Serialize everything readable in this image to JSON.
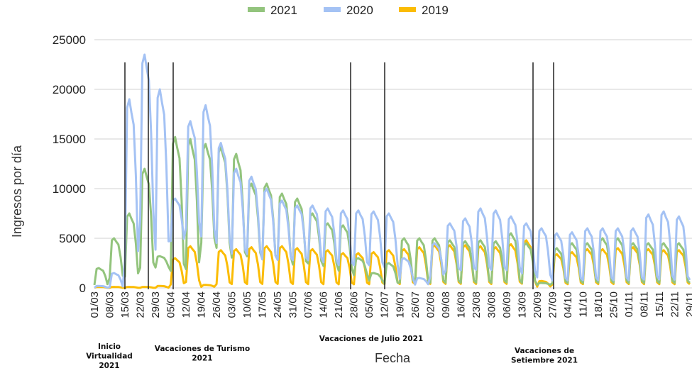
{
  "chart_data": {
    "type": "line",
    "xlabel": "Fecha",
    "ylabel": "Ingresos por día",
    "ylim": [
      0,
      25000
    ],
    "yticks": [
      0,
      5000,
      10000,
      15000,
      20000,
      25000
    ],
    "xticks": [
      "01/03",
      "08/03",
      "15/03",
      "22/03",
      "29/03",
      "05/04",
      "12/04",
      "19/04",
      "26/04",
      "03/05",
      "10/05",
      "17/05",
      "24/05",
      "31/05",
      "07/06",
      "14/06",
      "21/06",
      "28/06",
      "05/07",
      "12/07",
      "19/07",
      "26/07",
      "02/08",
      "09/08",
      "16/08",
      "23/08",
      "30/08",
      "06/09",
      "13/09",
      "20/09",
      "27/09",
      "04/10",
      "11/10",
      "18/10",
      "25/10",
      "01/11",
      "08/11",
      "15/11",
      "22/11",
      "29/11"
    ],
    "grid": true,
    "legend": "top",
    "colors": {
      "2021": "#93c47d",
      "2020": "#a4c2f4",
      "2019": "#fbbc04"
    },
    "series": [
      {
        "name": "2021",
        "weekly_peaks": [
          2000,
          5000,
          7500,
          12000,
          3200,
          15200,
          15000,
          14500,
          14200,
          13500,
          10500,
          10500,
          9500,
          9000,
          7500,
          6500,
          6300,
          3000,
          1500,
          2500,
          5000,
          5000,
          5000,
          4800,
          4700,
          4800,
          4700,
          5500,
          4500,
          500,
          4000,
          4500,
          4500,
          5000,
          5000,
          4500,
          4500,
          4500,
          4500,
          4500
        ],
        "weekly_troughs": [
          200,
          800,
          800,
          1500,
          2000,
          1000,
          1200,
          4000,
          3500,
          2500,
          2800,
          2500,
          2500,
          2000,
          2200,
          2000,
          1500,
          1200,
          700,
          300,
          300,
          300,
          300,
          300,
          300,
          300,
          300,
          300,
          300,
          300,
          300,
          300,
          300,
          300,
          300,
          300,
          300,
          300,
          300,
          300
        ]
      },
      {
        "name": "2020",
        "weekly_peaks": [
          200,
          1500,
          19000,
          23500,
          20000,
          9000,
          16800,
          18400,
          14600,
          12000,
          11200,
          10000,
          8800,
          8300,
          8300,
          8000,
          7800,
          7800,
          7700,
          7500,
          3000,
          1000,
          4500,
          6500,
          7000,
          8000,
          7800,
          7200,
          6500,
          6000,
          5500,
          5600,
          6000,
          6000,
          6000,
          6000,
          7400,
          7700,
          7200,
          6500
        ],
        "weekly_troughs": [
          0,
          0,
          2000,
          6000,
          3000,
          4500,
          5500,
          4500,
          4000,
          3000,
          3000,
          2500,
          2500,
          2500,
          2500,
          2300,
          2000,
          2000,
          2000,
          1800,
          800,
          300,
          1000,
          1500,
          1500,
          1500,
          1500,
          1500,
          1200,
          800,
          500,
          500,
          500,
          500,
          500,
          500,
          500,
          500,
          500,
          500
        ]
      },
      {
        "name": "2019",
        "weekly_peaks": [
          100,
          100,
          100,
          100,
          200,
          3000,
          4200,
          300,
          3800,
          3900,
          4100,
          4200,
          4200,
          4000,
          3900,
          3800,
          3500,
          3500,
          3600,
          3800,
          3900,
          4100,
          4300,
          4300,
          4300,
          4200,
          4100,
          4400,
          4800,
          700,
          3400,
          3600,
          3900,
          3900,
          4000,
          4100,
          3900,
          3800,
          3800,
          3700
        ],
        "weekly_troughs": [
          0,
          0,
          0,
          0,
          0,
          200,
          400,
          100,
          200,
          200,
          200,
          200,
          200,
          200,
          200,
          200,
          200,
          200,
          200,
          200,
          200,
          200,
          200,
          200,
          200,
          200,
          200,
          200,
          200,
          100,
          200,
          200,
          200,
          200,
          200,
          200,
          200,
          200,
          200,
          200
        ]
      }
    ],
    "annotations": [
      {
        "text": [
          "Inicio",
          "Virtualidad",
          "2021"
        ],
        "week_from": 2,
        "week_to": 2
      },
      {
        "text": [
          "Vacaciones de Turismo",
          "2021"
        ],
        "week_from": 4,
        "week_to": 5
      },
      {
        "text": [
          "Vacaciones de Julio 2021"
        ],
        "week_from": 17,
        "week_to": 19
      },
      {
        "text": [
          "Vacaciones de",
          "Setiembre  2021"
        ],
        "week_from": 29,
        "week_to": 30
      }
    ]
  }
}
